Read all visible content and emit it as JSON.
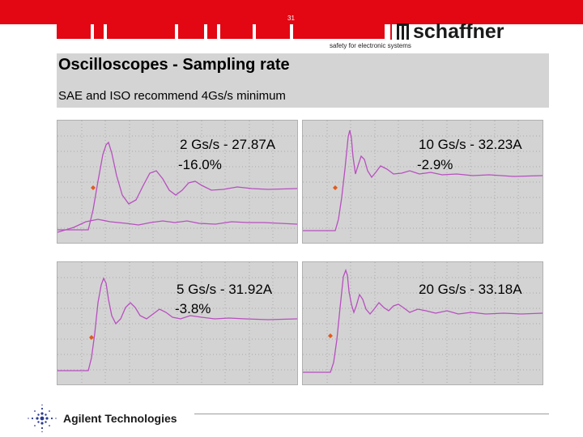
{
  "header": {
    "slide_number": "31",
    "brand": "schaffner",
    "tagline": "safety for electronic systems"
  },
  "slide": {
    "title": "Oscilloscopes - Sampling rate",
    "subtitle": "SAE and ISO recommend 4Gs/s minimum"
  },
  "scopes": [
    {
      "line1": "2 Gs/s - 27.87A",
      "line2": "-16.0%"
    },
    {
      "line1": "10 Gs/s - 32.23A",
      "line2": "-2.9%"
    },
    {
      "line1": "5 Gs/s - 31.92A",
      "line2": "-3.8%"
    },
    {
      "line1": "20 Gs/s - 33.18A",
      "line2": ""
    }
  ],
  "footer": {
    "company": "Agilent Technologies"
  },
  "colors": {
    "brand_red": "#e30613",
    "title_bar": "#d4d4d4",
    "scope_bg": "#d3d3d3",
    "trace": "#b84fc0",
    "marker": "#e35a1a"
  }
}
